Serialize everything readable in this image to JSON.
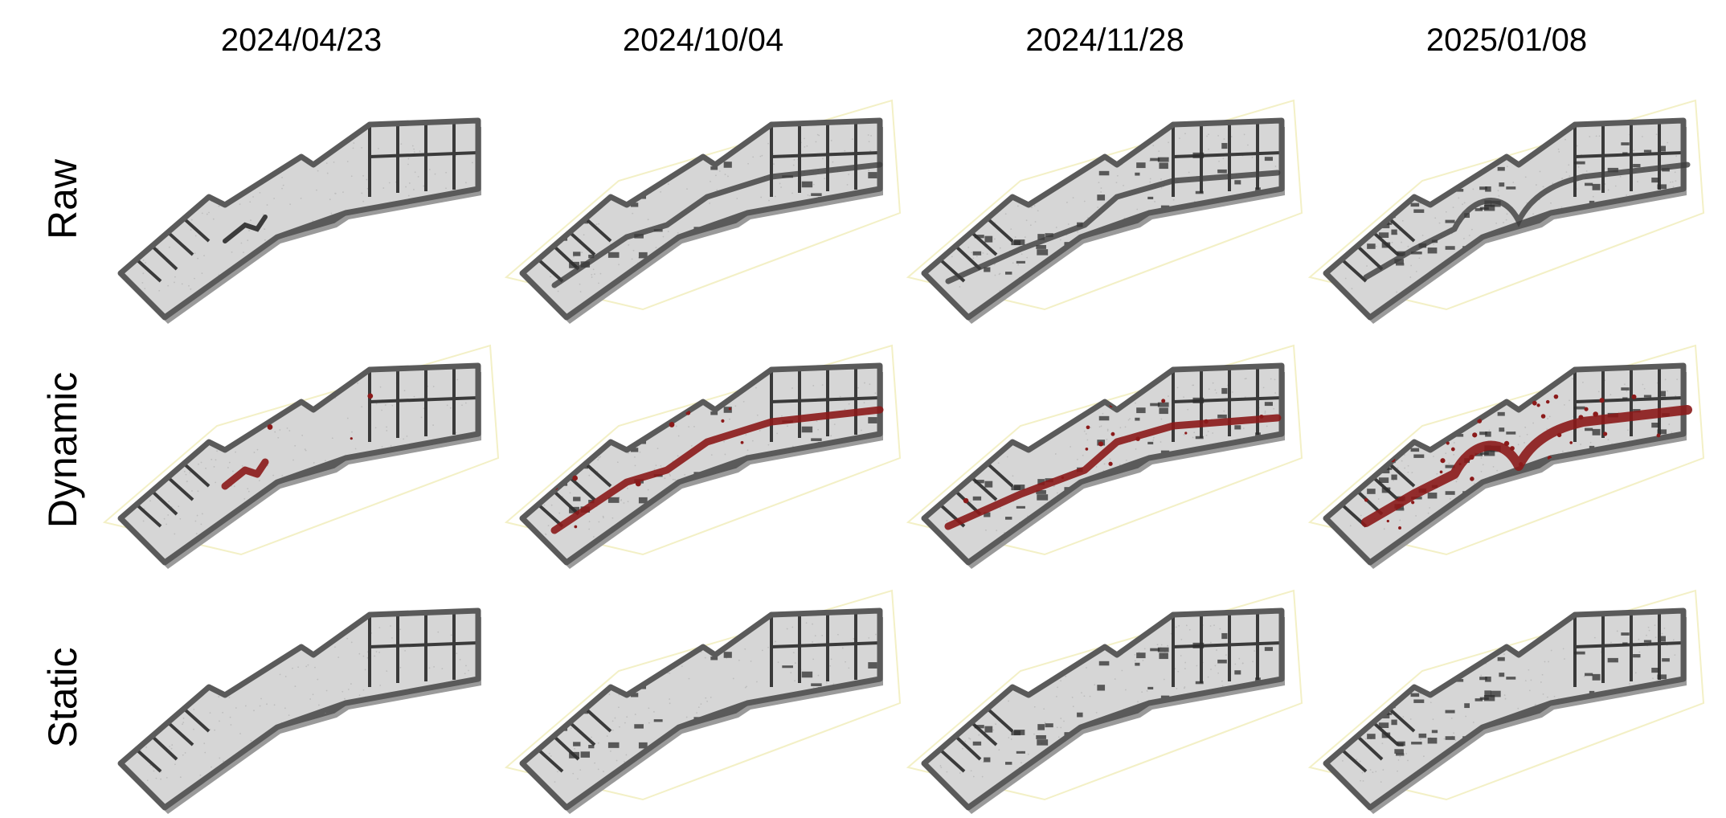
{
  "figure": {
    "columns": [
      {
        "date": "2024/04/23"
      },
      {
        "date": "2024/10/04"
      },
      {
        "date": "2024/11/28"
      },
      {
        "date": "2025/01/08"
      }
    ],
    "rows": [
      {
        "label": "Raw",
        "kind": "raw"
      },
      {
        "label": "Dynamic",
        "kind": "dynamic"
      },
      {
        "label": "Static",
        "kind": "static"
      }
    ]
  },
  "colors": {
    "floor": "#d6d6d6",
    "floor_speckle": "#bdbdbd",
    "wall": "#5a5a5a",
    "wall_dark": "#3a3a3a",
    "clutter": "#2e2e2e",
    "dynamic_points": "#8b1a1a",
    "bbox_line": "#f3f0c6"
  }
}
